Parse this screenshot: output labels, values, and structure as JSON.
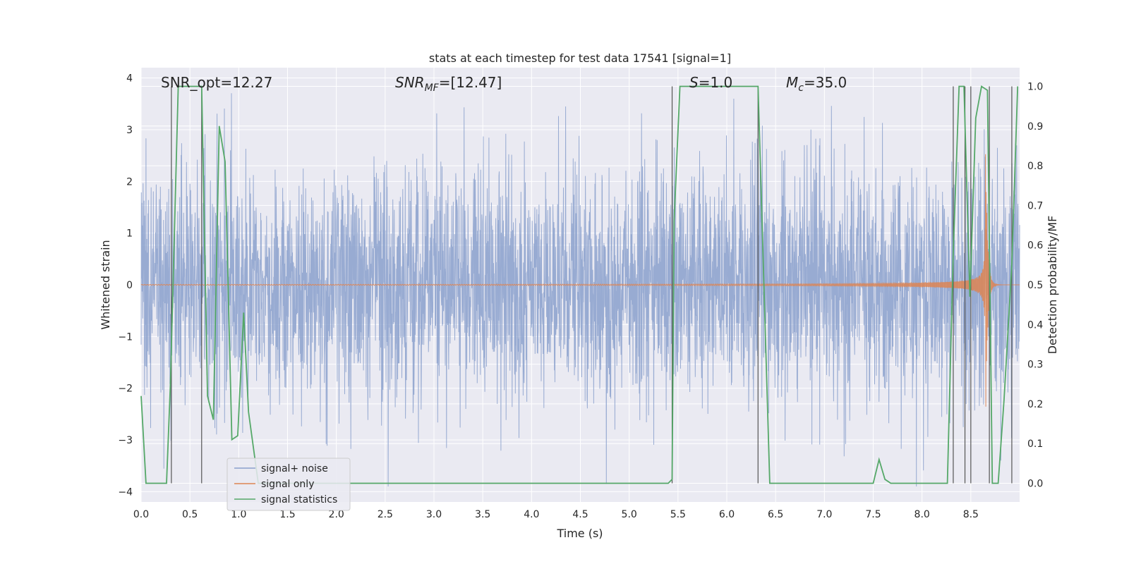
{
  "chart_data": {
    "type": "line",
    "title": "stats at each timestep for test data 17541 [signal=1]",
    "xlabel": "Time (s)",
    "ylabel": "Whitened strain",
    "y2label": "Detection probability/MF",
    "xlim": [
      0.0,
      9.0
    ],
    "ylim": [
      -4.2,
      4.2
    ],
    "y2lim": [
      -0.047,
      1.047
    ],
    "xticks": [
      "0.0",
      "0.5",
      "1.0",
      "1.5",
      "2.0",
      "2.5",
      "3.0",
      "3.5",
      "4.0",
      "4.5",
      "5.0",
      "5.5",
      "6.0",
      "6.5",
      "7.0",
      "7.5",
      "8.0",
      "8.5"
    ],
    "yticks": [
      "4",
      "3",
      "2",
      "1",
      "0",
      "−1",
      "−2",
      "−3",
      "−4"
    ],
    "y2ticks": [
      "1.0",
      "0.9",
      "0.8",
      "0.7",
      "0.6",
      "0.5",
      "0.4",
      "0.3",
      "0.2",
      "0.1",
      "0.0"
    ],
    "annotations": {
      "snr_opt": "SNR_opt=12.27",
      "snr_mf_main": "SNR",
      "snr_mf_sub": "MF",
      "snr_mf_value": "=[12.47]",
      "s_main": "S",
      "s_value": "=1.0",
      "mc_main": "M",
      "mc_sub": "c",
      "mc_value": "=35.0"
    },
    "legend": [
      "signal+ noise",
      "signal only",
      "signal statistics"
    ],
    "colors": {
      "noise": "#8aa0cc",
      "signal": "#dd8452",
      "stats": "#55a868",
      "vline": "#555555",
      "plot_bg": "#eaeaf2",
      "grid": "#ffffff"
    },
    "series": [
      {
        "name": "signal statistics",
        "axis": "right",
        "x": [
          0.0,
          0.05,
          0.26,
          0.3,
          0.38,
          0.62,
          0.68,
          0.74,
          0.8,
          0.86,
          0.93,
          0.99,
          1.05,
          1.1,
          1.2,
          1.5,
          5.4,
          5.44,
          5.46,
          5.52,
          6.32,
          6.44,
          7.5,
          7.56,
          7.62,
          7.68,
          8.26,
          8.32,
          8.38,
          8.43,
          8.49,
          8.55,
          8.61,
          8.67,
          8.72,
          8.78,
          8.84,
          8.92,
          8.98
        ],
        "values": [
          0.22,
          0.0,
          0.0,
          0.25,
          1.0,
          1.0,
          0.22,
          0.16,
          0.9,
          0.81,
          0.11,
          0.12,
          0.43,
          0.18,
          0.0,
          0.0,
          0.0,
          0.01,
          0.66,
          1.0,
          1.0,
          0.0,
          0.0,
          0.06,
          0.01,
          0.0,
          0.0,
          0.58,
          1.0,
          1.0,
          0.47,
          0.92,
          1.0,
          0.99,
          0.0,
          0.0,
          0.21,
          0.55,
          1.0
        ]
      },
      {
        "name": "signal only",
        "axis": "left",
        "model": "chirp",
        "merger_time": 8.65,
        "peak_amplitude": 2.8
      },
      {
        "name": "signal+ noise",
        "axis": "left",
        "model": "whitened gaussian noise",
        "sigma": 1.0
      }
    ],
    "vlines": [
      0.31,
      0.62,
      5.44,
      6.32,
      8.32,
      8.44,
      8.5,
      8.69,
      8.92
    ]
  }
}
